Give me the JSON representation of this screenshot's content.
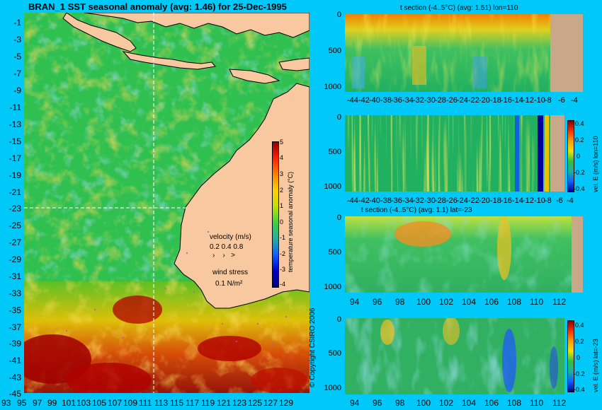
{
  "title": "BRAN_1  SST seasonal anomaly (avg: 1.46) for 25-Dec-1995",
  "copyright": "© Copyright CSIRO 2006",
  "chart_data": [
    {
      "type": "heatmap",
      "name": "map",
      "xticks": [
        "93",
        "95",
        "97",
        "99",
        "101",
        "103",
        "105",
        "107",
        "109",
        "111",
        "113",
        "115",
        "117",
        "119",
        "121",
        "123",
        "125",
        "127",
        "129"
      ],
      "yticks": [
        "-1",
        "-3",
        "-5",
        "-7",
        "-9",
        "-11",
        "-13",
        "-15",
        "-17",
        "-19",
        "-21",
        "-23",
        "-25",
        "-27",
        "-29",
        "-31",
        "-33",
        "-35",
        "-37",
        "-39",
        "-41",
        "-43",
        "-45"
      ],
      "xlim": [
        93,
        130
      ],
      "ylim": [
        -45,
        0
      ],
      "colorbar": {
        "label": "temperature seasonal anomaly (°C)",
        "ticks": [
          "5",
          "4",
          "3",
          "2",
          "1",
          "0",
          "-1",
          "-2",
          "-3",
          "-4"
        ],
        "range": [
          -4,
          5
        ]
      },
      "legend": {
        "velocity_title": "velocity (m/s)",
        "velocity_ticks": "0.2 0.4 0.8",
        "wind_title": "wind stress",
        "wind_value": "0.1 N/m²"
      },
      "crosshair": {
        "lon": 110,
        "lat": -23
      }
    },
    {
      "type": "heatmap",
      "name": "t-section-lon",
      "title": "t section (-4..5°C) (avg: 1.51) lon=110",
      "xticks": [
        "-44",
        "-42",
        "-40",
        "-38",
        "-36",
        "-34",
        "-32",
        "-30",
        "-28",
        "-26",
        "-24",
        "-22",
        "-20",
        "-18",
        "-16",
        "-14",
        "-12",
        "-10",
        "-8",
        "-6",
        "-4"
      ],
      "yticks": [
        "0",
        "500",
        "1000"
      ],
      "xlim": [
        -45,
        -2
      ],
      "ylim": [
        1050,
        0
      ]
    },
    {
      "type": "heatmap",
      "name": "vel-section-lon",
      "xticks": [
        "-44",
        "-42",
        "-40",
        "-38",
        "-36",
        "-34",
        "-32",
        "-30",
        "-28",
        "-26",
        "-24",
        "-22",
        "-20",
        "-18",
        "-16",
        "-14",
        "-12",
        "-10",
        "-8",
        "-6",
        "-4"
      ],
      "yticks": [
        "0",
        "500",
        "1000"
      ],
      "xlim": [
        -45,
        -2
      ],
      "ylim": [
        1050,
        0
      ],
      "colorbar": {
        "label": "vel. E (m/s) lon=110",
        "ticks": [
          "0.4",
          "0.2",
          "0",
          "-0.2",
          "-0.4"
        ]
      }
    },
    {
      "type": "heatmap",
      "name": "t-section-lat",
      "title": "t section (-4..5°C) (avg: 1.1) lat=-23",
      "xticks": [
        "94",
        "96",
        "98",
        "100",
        "102",
        "104",
        "106",
        "108",
        "110",
        "112"
      ],
      "yticks": [
        "0",
        "500",
        "1000"
      ],
      "xlim": [
        93,
        114
      ],
      "ylim": [
        1050,
        0
      ]
    },
    {
      "type": "heatmap",
      "name": "vel-section-lat",
      "xticks": [
        "94",
        "96",
        "98",
        "100",
        "102",
        "104",
        "106",
        "108",
        "110",
        "112"
      ],
      "yticks": [
        "0",
        "500",
        "1000"
      ],
      "xlim": [
        93,
        114
      ],
      "ylim": [
        1050,
        0
      ],
      "colorbar": {
        "label": "vel. E (m/s) lat=-23",
        "ticks": [
          "0.4",
          "0.2",
          "0",
          "-0.2",
          "-0.4"
        ]
      }
    }
  ]
}
